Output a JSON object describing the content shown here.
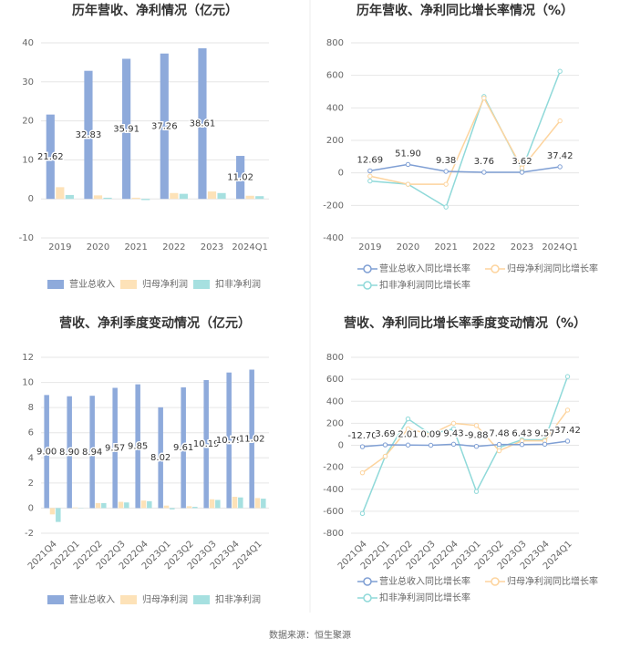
{
  "chart_data": [
    {
      "type": "bar",
      "title": "历年营收、净利情况（亿元）",
      "categories": [
        "2019",
        "2020",
        "2021",
        "2022",
        "2023",
        "2024Q1"
      ],
      "series": [
        {
          "name": "营业总收入",
          "color": "#8eaadb",
          "values": [
            21.62,
            32.83,
            35.91,
            37.26,
            38.61,
            11.02
          ],
          "value_labels": [
            "21.62",
            "32.83",
            "35.91",
            "37.26",
            "38.61",
            "11.02"
          ]
        },
        {
          "name": "归母净利润",
          "color": "#fde2b8",
          "values": [
            3.0,
            0.9,
            0.3,
            1.5,
            1.9,
            0.8
          ]
        },
        {
          "name": "扣非净利润",
          "color": "#a6e0e0",
          "values": [
            1.0,
            0.3,
            -0.3,
            1.3,
            1.5,
            0.7
          ]
        }
      ],
      "ylim": [
        -10,
        40
      ],
      "yticks": [
        -10,
        0,
        10,
        20,
        30,
        40
      ],
      "grid": true
    },
    {
      "type": "line",
      "title": "历年营收、净利同比增长率情况（%）",
      "categories": [
        "2019",
        "2020",
        "2021",
        "2022",
        "2023",
        "2024Q1"
      ],
      "series": [
        {
          "name": "营业总收入同比增长率",
          "color": "#7f9fd4",
          "values": [
            12.69,
            51.9,
            9.38,
            3.76,
            3.62,
            37.42
          ],
          "value_labels": [
            "12.69",
            "51.90",
            "9.38",
            "3.76",
            "3.62",
            "37.42"
          ]
        },
        {
          "name": "归母净利润同比增长率",
          "color": "#fdd49e",
          "values": [
            -20,
            -70,
            -70,
            460,
            30,
            320
          ]
        },
        {
          "name": "扣非净利润同比增长率",
          "color": "#8fd9d9",
          "values": [
            -50,
            -70,
            -210,
            470,
            20,
            625
          ]
        }
      ],
      "ylim": [
        -400,
        800
      ],
      "yticks": [
        -400,
        -200,
        0,
        200,
        400,
        600,
        800
      ],
      "grid": true
    },
    {
      "type": "bar",
      "title": "营收、净利季度变动情况（亿元）",
      "categories": [
        "2021Q4",
        "2022Q1",
        "2022Q2",
        "2022Q3",
        "2022Q4",
        "2023Q1",
        "2023Q2",
        "2023Q3",
        "2023Q4",
        "2024Q1"
      ],
      "series": [
        {
          "name": "营业总收入",
          "color": "#8eaadb",
          "values": [
            9.0,
            8.9,
            8.94,
            9.57,
            9.85,
            8.02,
            9.61,
            10.19,
            10.79,
            11.02
          ],
          "value_labels": [
            "9.00",
            "8.90",
            "8.94",
            "9.57",
            "9.85",
            "8.02",
            "9.61",
            "10.19",
            "10.79",
            "11.02"
          ]
        },
        {
          "name": "归母净利润",
          "color": "#fde2b8",
          "values": [
            -0.5,
            0.05,
            0.4,
            0.5,
            0.6,
            0.2,
            0.15,
            0.7,
            0.9,
            0.8
          ]
        },
        {
          "name": "扣非净利润",
          "color": "#a6e0e0",
          "values": [
            -1.1,
            0.02,
            0.4,
            0.45,
            0.55,
            -0.1,
            0.1,
            0.65,
            0.85,
            0.75
          ]
        }
      ],
      "ylim": [
        -2,
        12
      ],
      "yticks": [
        -2,
        0,
        2,
        4,
        6,
        8,
        10,
        12
      ],
      "grid": true
    },
    {
      "type": "line",
      "title": "营收、净利同比增长率季度变动情况（%）",
      "categories": [
        "2021Q4",
        "2022Q1",
        "2022Q2",
        "2022Q3",
        "2022Q4",
        "2023Q1",
        "2023Q2",
        "2023Q3",
        "2023Q4",
        "2024Q1"
      ],
      "series": [
        {
          "name": "营业总收入同比增长率",
          "color": "#7f9fd4",
          "values": [
            -12.7,
            3.69,
            2.01,
            0.09,
            9.43,
            -9.88,
            7.48,
            6.43,
            9.57,
            37.42
          ],
          "value_labels": [
            "-12.70",
            "3.69",
            "2.01",
            "0.09",
            "9.43",
            "-9.88",
            "7.48",
            "6.43",
            "9.57",
            "37.42"
          ]
        },
        {
          "name": "归母净利润同比增长率",
          "color": "#fdd49e",
          "values": [
            -250,
            -100,
            150,
            100,
            200,
            180,
            -50,
            40,
            40,
            320
          ]
        },
        {
          "name": "扣非净利润同比增长率",
          "color": "#8fd9d9",
          "values": [
            -620,
            -100,
            240,
            100,
            150,
            -420,
            -20,
            50,
            50,
            625
          ]
        }
      ],
      "ylim": [
        -800,
        800
      ],
      "yticks": [
        -800,
        -600,
        -400,
        -200,
        0,
        200,
        400,
        600,
        800
      ],
      "grid": true
    }
  ],
  "source": "数据来源：恒生聚源"
}
